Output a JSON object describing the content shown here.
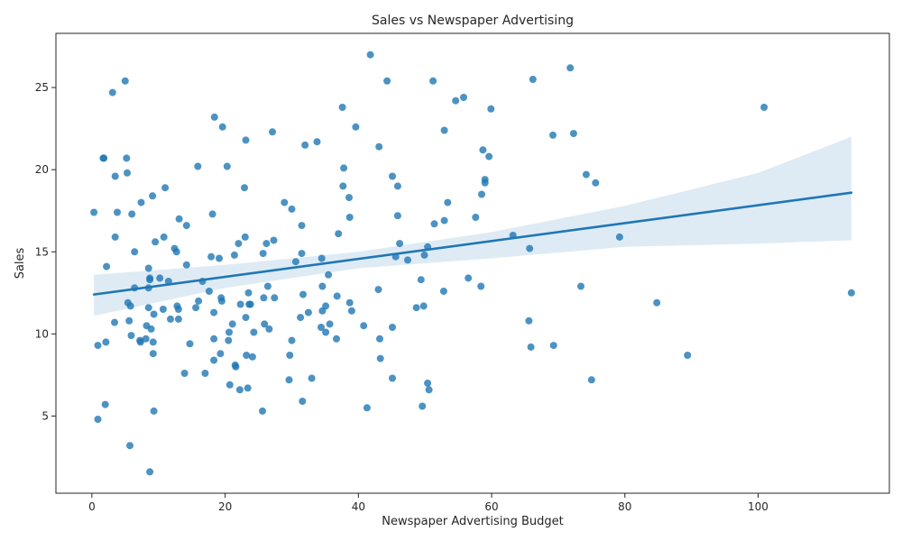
{
  "chart_data": {
    "type": "scatter",
    "title": "Sales vs Newspaper Advertising",
    "xlabel": "Newspaper Advertising Budget",
    "ylabel": "Sales",
    "xlim": [
      -5.4,
      119.7
    ],
    "ylim": [
      0.3,
      28.3
    ],
    "xticks": [
      0,
      20,
      40,
      60,
      80,
      100
    ],
    "yticks": [
      5,
      10,
      15,
      20,
      25
    ],
    "grid": false,
    "legend": "none",
    "colors": {
      "points": "#1f77b4",
      "line": "#1f77b4",
      "band": "#1f77b4"
    },
    "regression": {
      "x0": 0.3,
      "y0": 12.4,
      "x1": 114,
      "y1": 18.6
    },
    "band_upper": [
      [
        0.3,
        13.6
      ],
      [
        20,
        14.2
      ],
      [
        40,
        15.0
      ],
      [
        60,
        16.2
      ],
      [
        80,
        17.8
      ],
      [
        100,
        19.8
      ],
      [
        114,
        22.0
      ]
    ],
    "band_lower": [
      [
        0.3,
        11.1
      ],
      [
        20,
        12.8
      ],
      [
        40,
        14.0
      ],
      [
        60,
        14.6
      ],
      [
        80,
        15.3
      ],
      [
        100,
        15.5
      ],
      [
        114,
        15.7
      ]
    ],
    "points": [
      [
        0.3,
        17.4
      ],
      [
        0.9,
        4.8
      ],
      [
        0.9,
        9.3
      ],
      [
        1.7,
        20.7
      ],
      [
        1.8,
        20.7
      ],
      [
        2.0,
        5.7
      ],
      [
        2.1,
        9.5
      ],
      [
        2.2,
        14.1
      ],
      [
        3.1,
        24.7
      ],
      [
        3.4,
        10.7
      ],
      [
        3.5,
        15.9
      ],
      [
        3.5,
        19.6
      ],
      [
        3.8,
        17.4
      ],
      [
        5.0,
        25.4
      ],
      [
        5.2,
        20.7
      ],
      [
        5.3,
        19.8
      ],
      [
        5.4,
        11.9
      ],
      [
        5.6,
        10.8
      ],
      [
        5.7,
        3.2
      ],
      [
        5.8,
        11.7
      ],
      [
        5.9,
        9.9
      ],
      [
        6.0,
        17.3
      ],
      [
        6.4,
        15.0
      ],
      [
        6.4,
        12.8
      ],
      [
        7.2,
        9.6
      ],
      [
        7.3,
        9.5
      ],
      [
        7.4,
        18.0
      ],
      [
        8.1,
        9.7
      ],
      [
        8.2,
        10.5
      ],
      [
        8.5,
        14.0
      ],
      [
        8.5,
        12.8
      ],
      [
        8.5,
        11.6
      ],
      [
        8.7,
        13.3
      ],
      [
        8.7,
        13.4
      ],
      [
        8.7,
        1.6
      ],
      [
        8.9,
        10.3
      ],
      [
        9.1,
        18.4
      ],
      [
        9.2,
        8.8
      ],
      [
        9.2,
        9.5
      ],
      [
        9.3,
        11.2
      ],
      [
        9.3,
        5.3
      ],
      [
        9.5,
        15.6
      ],
      [
        10.2,
        13.4
      ],
      [
        10.7,
        11.5
      ],
      [
        10.8,
        15.9
      ],
      [
        11.0,
        18.9
      ],
      [
        11.5,
        13.2
      ],
      [
        11.8,
        10.9
      ],
      [
        12.4,
        15.2
      ],
      [
        12.7,
        15.0
      ],
      [
        12.8,
        11.7
      ],
      [
        13.0,
        10.9
      ],
      [
        13.0,
        11.5
      ],
      [
        13.1,
        17.0
      ],
      [
        13.9,
        7.6
      ],
      [
        14.2,
        16.6
      ],
      [
        14.2,
        14.2
      ],
      [
        14.7,
        9.4
      ],
      [
        15.6,
        11.6
      ],
      [
        15.9,
        20.2
      ],
      [
        16.0,
        12.0
      ],
      [
        16.6,
        13.2
      ],
      [
        17.0,
        7.6
      ],
      [
        17.6,
        12.6
      ],
      [
        17.9,
        14.7
      ],
      [
        18.1,
        17.3
      ],
      [
        18.3,
        11.3
      ],
      [
        18.3,
        9.7
      ],
      [
        18.3,
        8.4
      ],
      [
        18.4,
        23.2
      ],
      [
        19.1,
        14.6
      ],
      [
        19.3,
        8.8
      ],
      [
        19.4,
        12.2
      ],
      [
        19.5,
        12.0
      ],
      [
        19.6,
        22.6
      ],
      [
        20.3,
        20.2
      ],
      [
        20.5,
        9.6
      ],
      [
        20.6,
        10.1
      ],
      [
        20.7,
        6.9
      ],
      [
        21.1,
        10.6
      ],
      [
        21.4,
        14.8
      ],
      [
        21.5,
        8.1
      ],
      [
        21.6,
        8.0
      ],
      [
        22.0,
        15.5
      ],
      [
        22.2,
        6.6
      ],
      [
        22.3,
        11.8
      ],
      [
        22.9,
        18.9
      ],
      [
        23.0,
        15.9
      ],
      [
        23.1,
        11.0
      ],
      [
        23.1,
        21.8
      ],
      [
        23.2,
        8.7
      ],
      [
        23.4,
        6.7
      ],
      [
        23.5,
        12.5
      ],
      [
        23.6,
        11.8
      ],
      [
        23.8,
        11.8
      ],
      [
        24.1,
        8.6
      ],
      [
        24.3,
        10.1
      ],
      [
        25.6,
        5.3
      ],
      [
        25.7,
        14.9
      ],
      [
        25.8,
        12.2
      ],
      [
        25.9,
        10.6
      ],
      [
        26.2,
        15.5
      ],
      [
        26.4,
        12.9
      ],
      [
        26.6,
        10.3
      ],
      [
        27.1,
        22.3
      ],
      [
        27.3,
        15.7
      ],
      [
        27.4,
        12.2
      ],
      [
        28.9,
        18.0
      ],
      [
        29.6,
        7.2
      ],
      [
        29.7,
        8.7
      ],
      [
        30.0,
        17.6
      ],
      [
        30.0,
        9.6
      ],
      [
        30.6,
        14.4
      ],
      [
        31.3,
        11.0
      ],
      [
        31.5,
        16.6
      ],
      [
        31.5,
        14.9
      ],
      [
        31.6,
        5.9
      ],
      [
        31.7,
        12.4
      ],
      [
        32.0,
        21.5
      ],
      [
        32.5,
        11.3
      ],
      [
        33.0,
        7.3
      ],
      [
        33.8,
        21.7
      ],
      [
        34.4,
        10.4
      ],
      [
        34.5,
        14.6
      ],
      [
        34.6,
        12.9
      ],
      [
        34.6,
        11.4
      ],
      [
        35.1,
        11.7
      ],
      [
        35.1,
        10.1
      ],
      [
        35.5,
        13.6
      ],
      [
        35.7,
        10.6
      ],
      [
        36.7,
        9.7
      ],
      [
        36.8,
        12.3
      ],
      [
        37.0,
        16.1
      ],
      [
        37.6,
        23.8
      ],
      [
        37.7,
        19.0
      ],
      [
        37.8,
        20.1
      ],
      [
        38.6,
        18.3
      ],
      [
        38.7,
        17.1
      ],
      [
        38.7,
        11.9
      ],
      [
        39.0,
        11.4
      ],
      [
        39.6,
        22.6
      ],
      [
        40.8,
        10.5
      ],
      [
        41.3,
        5.5
      ],
      [
        41.8,
        27.0
      ],
      [
        43.0,
        12.7
      ],
      [
        43.1,
        21.4
      ],
      [
        43.2,
        9.7
      ],
      [
        43.3,
        8.5
      ],
      [
        44.3,
        25.4
      ],
      [
        45.1,
        7.3
      ],
      [
        45.1,
        10.4
      ],
      [
        45.1,
        19.6
      ],
      [
        45.6,
        14.7
      ],
      [
        45.9,
        19.0
      ],
      [
        45.9,
        17.2
      ],
      [
        46.2,
        15.5
      ],
      [
        47.4,
        14.5
      ],
      [
        48.7,
        11.6
      ],
      [
        49.4,
        13.3
      ],
      [
        49.6,
        5.6
      ],
      [
        49.8,
        11.7
      ],
      [
        49.9,
        14.8
      ],
      [
        50.4,
        15.3
      ],
      [
        50.4,
        7.0
      ],
      [
        50.6,
        6.6
      ],
      [
        51.2,
        25.4
      ],
      [
        51.4,
        16.7
      ],
      [
        52.8,
        12.6
      ],
      [
        52.9,
        16.9
      ],
      [
        52.9,
        22.4
      ],
      [
        53.4,
        18.0
      ],
      [
        54.6,
        24.2
      ],
      [
        55.8,
        24.4
      ],
      [
        56.5,
        13.4
      ],
      [
        57.6,
        17.1
      ],
      [
        58.4,
        12.9
      ],
      [
        58.5,
        18.5
      ],
      [
        58.7,
        21.2
      ],
      [
        59.0,
        19.4
      ],
      [
        59.0,
        19.2
      ],
      [
        59.6,
        20.8
      ],
      [
        59.9,
        23.7
      ],
      [
        63.2,
        16.0
      ],
      [
        65.6,
        10.8
      ],
      [
        65.7,
        15.2
      ],
      [
        65.9,
        9.2
      ],
      [
        66.2,
        25.5
      ],
      [
        69.2,
        22.1
      ],
      [
        69.3,
        9.3
      ],
      [
        71.8,
        26.2
      ],
      [
        72.3,
        22.2
      ],
      [
        73.4,
        12.9
      ],
      [
        74.2,
        19.7
      ],
      [
        75.0,
        7.2
      ],
      [
        75.6,
        19.2
      ],
      [
        79.2,
        15.9
      ],
      [
        84.8,
        11.9
      ],
      [
        89.4,
        8.7
      ],
      [
        100.9,
        23.8
      ],
      [
        114.0,
        12.5
      ]
    ]
  }
}
